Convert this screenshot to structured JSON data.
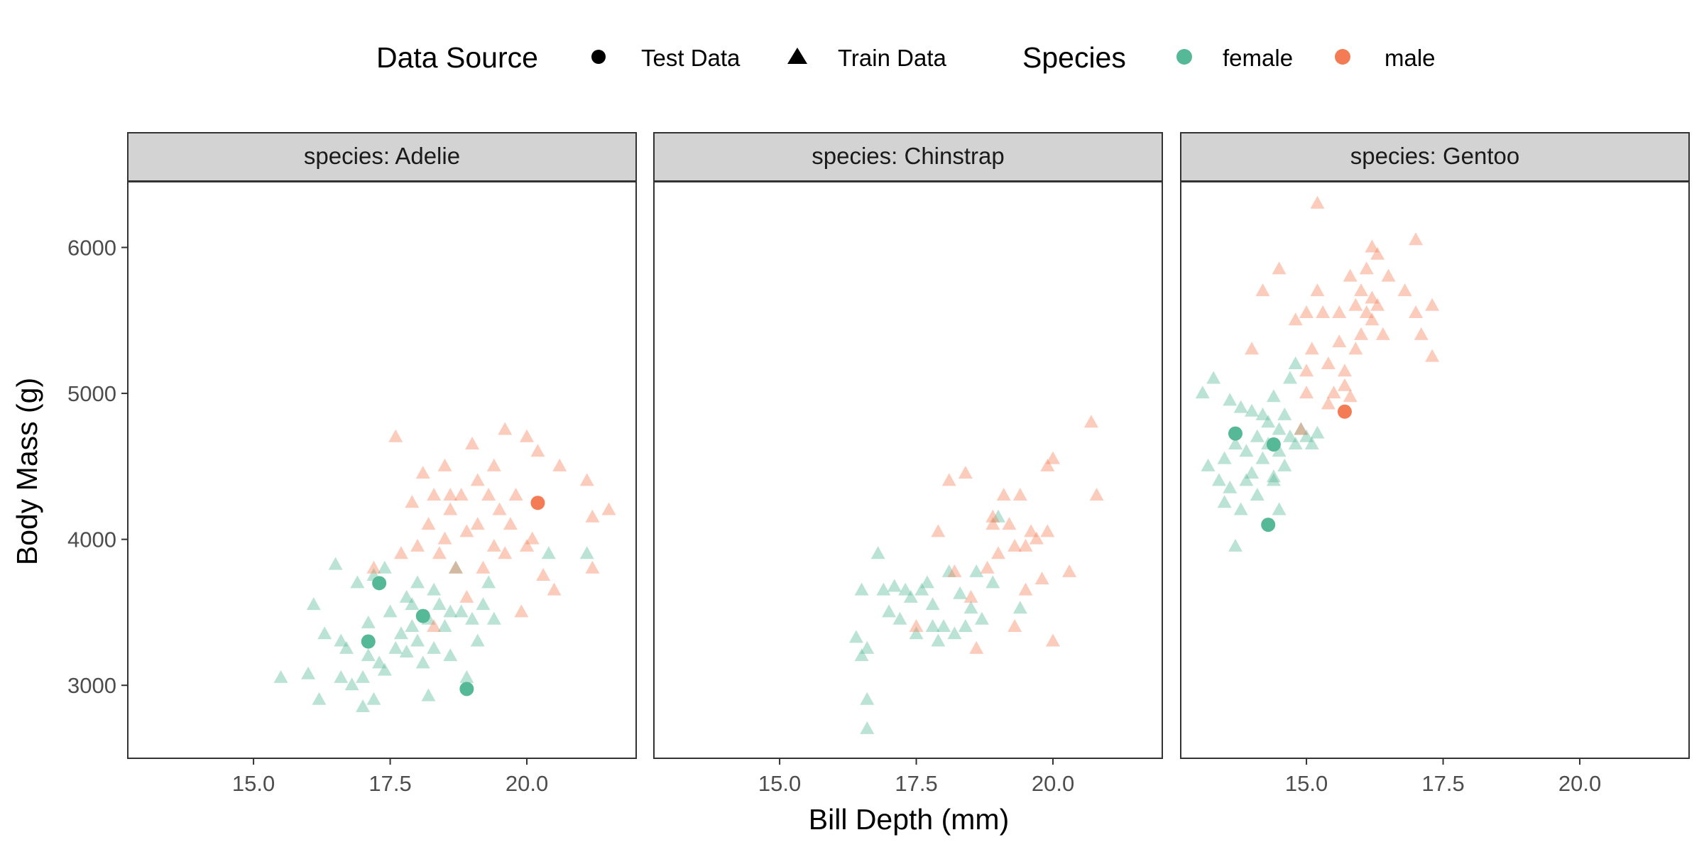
{
  "chart_data": {
    "type": "scatter",
    "facet_label_prefix": "species: ",
    "facets": [
      "Adelie",
      "Chinstrap",
      "Gentoo"
    ],
    "xlabel": "Bill Depth (mm)",
    "ylabel": "Body Mass (g)",
    "xlim": [
      12.7,
      22.0
    ],
    "ylim": [
      2500,
      6450
    ],
    "x_ticks": [
      15.0,
      17.5,
      20.0
    ],
    "x_tick_labels": [
      "15.0",
      "17.5",
      "20.0"
    ],
    "y_ticks": [
      3000,
      4000,
      5000,
      6000
    ],
    "y_tick_labels": [
      "3000",
      "4000",
      "5000",
      "6000"
    ],
    "grid": false,
    "legend": {
      "placement": "top",
      "shape_title": "Data Source",
      "shape_entries": [
        {
          "label": "Test Data",
          "shape": "circle"
        },
        {
          "label": "Train Data",
          "shape": "triangle"
        }
      ],
      "color_title": "Species",
      "color_entries": [
        {
          "label": "female",
          "color": "#55b896"
        },
        {
          "label": "male",
          "color": "#f47c55"
        }
      ]
    },
    "colors": {
      "female": "#55b896",
      "male": "#f47c55",
      "strip_fill": "#d3d3d3",
      "panel_border": "#333333"
    },
    "series": [
      {
        "facet": "Adelie",
        "sex": "female",
        "source": "Test Data",
        "points": [
          [
            17.3,
            3700
          ],
          [
            18.1,
            3475
          ],
          [
            17.1,
            3300
          ],
          [
            18.9,
            2975
          ]
        ]
      },
      {
        "facet": "Adelie",
        "sex": "male",
        "source": "Test Data",
        "points": [
          [
            20.2,
            4250
          ]
        ]
      },
      {
        "facet": "Adelie",
        "sex": "female",
        "source": "Train Data",
        "points": [
          [
            15.5,
            3050
          ],
          [
            16.0,
            3075
          ],
          [
            16.1,
            3550
          ],
          [
            16.2,
            2900
          ],
          [
            16.3,
            3350
          ],
          [
            16.5,
            3825
          ],
          [
            16.6,
            3050
          ],
          [
            16.7,
            3250
          ],
          [
            16.8,
            3000
          ],
          [
            16.9,
            3700
          ],
          [
            17.0,
            3050
          ],
          [
            17.1,
            3425
          ],
          [
            17.1,
            3200
          ],
          [
            17.2,
            2900
          ],
          [
            17.2,
            3750
          ],
          [
            17.3,
            3150
          ],
          [
            17.4,
            3800
          ],
          [
            17.5,
            3500
          ],
          [
            17.6,
            3250
          ],
          [
            17.7,
            3350
          ],
          [
            17.8,
            3225
          ],
          [
            17.8,
            3600
          ],
          [
            17.9,
            3400
          ],
          [
            18.0,
            3300
          ],
          [
            18.0,
            3700
          ],
          [
            18.1,
            3150
          ],
          [
            18.2,
            3450
          ],
          [
            18.2,
            2925
          ],
          [
            18.3,
            3650
          ],
          [
            18.4,
            3550
          ],
          [
            18.5,
            3400
          ],
          [
            18.6,
            3200
          ],
          [
            18.7,
            3800
          ],
          [
            18.8,
            3500
          ],
          [
            18.9,
            3050
          ],
          [
            19.0,
            3450
          ],
          [
            19.1,
            3300
          ],
          [
            19.2,
            3550
          ],
          [
            19.3,
            3700
          ],
          [
            16.6,
            3300
          ],
          [
            17.0,
            2850
          ],
          [
            17.4,
            3100
          ],
          [
            17.9,
            3550
          ],
          [
            18.3,
            3250
          ],
          [
            18.6,
            3500
          ],
          [
            19.4,
            3450
          ],
          [
            20.4,
            3900
          ],
          [
            21.1,
            3900
          ]
        ]
      },
      {
        "facet": "Adelie",
        "sex": "male",
        "source": "Train Data",
        "points": [
          [
            17.6,
            4700
          ],
          [
            17.7,
            3900
          ],
          [
            17.9,
            4250
          ],
          [
            18.0,
            3950
          ],
          [
            18.1,
            4450
          ],
          [
            18.2,
            4100
          ],
          [
            18.3,
            4300
          ],
          [
            18.4,
            3900
          ],
          [
            18.5,
            4000
          ],
          [
            18.5,
            4500
          ],
          [
            18.6,
            4200
          ],
          [
            18.7,
            3800
          ],
          [
            18.8,
            4300
          ],
          [
            18.9,
            3600
          ],
          [
            18.9,
            4050
          ],
          [
            19.0,
            4650
          ],
          [
            19.1,
            4400
          ],
          [
            19.1,
            4100
          ],
          [
            19.2,
            3800
          ],
          [
            19.3,
            4300
          ],
          [
            19.4,
            3950
          ],
          [
            19.4,
            4500
          ],
          [
            19.5,
            4200
          ],
          [
            19.6,
            4750
          ],
          [
            19.6,
            3900
          ],
          [
            19.7,
            4100
          ],
          [
            19.8,
            4300
          ],
          [
            19.9,
            3500
          ],
          [
            20.0,
            3950
          ],
          [
            20.0,
            4700
          ],
          [
            20.1,
            4000
          ],
          [
            20.2,
            4600
          ],
          [
            20.3,
            3750
          ],
          [
            20.5,
            3650
          ],
          [
            20.6,
            4500
          ],
          [
            21.1,
            4400
          ],
          [
            21.2,
            4150
          ],
          [
            21.5,
            4200
          ],
          [
            21.2,
            3800
          ],
          [
            18.6,
            4300
          ],
          [
            18.3,
            3400
          ],
          [
            17.2,
            3800
          ]
        ]
      },
      {
        "facet": "Chinstrap",
        "sex": "female",
        "source": "Train Data",
        "points": [
          [
            16.4,
            3325
          ],
          [
            16.5,
            3200
          ],
          [
            16.6,
            3250
          ],
          [
            16.6,
            2900
          ],
          [
            16.6,
            2700
          ],
          [
            16.8,
            3900
          ],
          [
            16.9,
            3650
          ],
          [
            17.0,
            3500
          ],
          [
            17.1,
            3675
          ],
          [
            17.2,
            3450
          ],
          [
            17.3,
            3650
          ],
          [
            17.4,
            3600
          ],
          [
            17.5,
            3350
          ],
          [
            17.6,
            3650
          ],
          [
            17.7,
            3700
          ],
          [
            17.8,
            3400
          ],
          [
            17.8,
            3550
          ],
          [
            17.9,
            3300
          ],
          [
            18.0,
            3400
          ],
          [
            18.1,
            3775
          ],
          [
            18.2,
            3350
          ],
          [
            18.3,
            3625
          ],
          [
            18.4,
            3400
          ],
          [
            18.5,
            3525
          ],
          [
            18.6,
            3775
          ],
          [
            18.7,
            3450
          ],
          [
            18.9,
            3700
          ],
          [
            19.0,
            4150
          ],
          [
            19.4,
            3525
          ],
          [
            16.5,
            3650
          ]
        ]
      },
      {
        "facet": "Chinstrap",
        "sex": "male",
        "source": "Train Data",
        "points": [
          [
            17.5,
            3400
          ],
          [
            17.9,
            4050
          ],
          [
            18.1,
            4400
          ],
          [
            18.2,
            3775
          ],
          [
            18.4,
            4450
          ],
          [
            18.5,
            3600
          ],
          [
            18.6,
            3250
          ],
          [
            18.8,
            3800
          ],
          [
            18.9,
            4100
          ],
          [
            19.0,
            3900
          ],
          [
            19.1,
            4300
          ],
          [
            19.2,
            4100
          ],
          [
            19.3,
            3400
          ],
          [
            19.4,
            4300
          ],
          [
            19.5,
            3950
          ],
          [
            19.5,
            3650
          ],
          [
            19.6,
            4050
          ],
          [
            19.7,
            4000
          ],
          [
            19.8,
            3725
          ],
          [
            19.9,
            4050
          ],
          [
            19.9,
            4500
          ],
          [
            20.0,
            4550
          ],
          [
            20.0,
            3300
          ],
          [
            20.3,
            3775
          ],
          [
            20.7,
            4800
          ],
          [
            20.8,
            4300
          ],
          [
            19.3,
            3950
          ],
          [
            18.9,
            4150
          ]
        ]
      },
      {
        "facet": "Gentoo",
        "sex": "female",
        "source": "Test Data",
        "points": [
          [
            13.7,
            4725
          ],
          [
            14.4,
            4650
          ],
          [
            14.3,
            4100
          ]
        ]
      },
      {
        "facet": "Gentoo",
        "sex": "male",
        "source": "Test Data",
        "points": [
          [
            15.7,
            4875
          ]
        ]
      },
      {
        "facet": "Gentoo",
        "sex": "female",
        "source": "Train Data",
        "points": [
          [
            13.1,
            5000
          ],
          [
            13.2,
            4500
          ],
          [
            13.3,
            5100
          ],
          [
            13.4,
            4400
          ],
          [
            13.5,
            4550
          ],
          [
            13.5,
            4250
          ],
          [
            13.6,
            4950
          ],
          [
            13.6,
            4350
          ],
          [
            13.7,
            3950
          ],
          [
            13.7,
            4650
          ],
          [
            13.8,
            4200
          ],
          [
            13.8,
            4900
          ],
          [
            13.9,
            4400
          ],
          [
            14.0,
            4875
          ],
          [
            14.0,
            4450
          ],
          [
            14.1,
            4700
          ],
          [
            14.1,
            4300
          ],
          [
            14.2,
            4850
          ],
          [
            14.2,
            4550
          ],
          [
            14.3,
            4650
          ],
          [
            14.3,
            4800
          ],
          [
            14.4,
            4400
          ],
          [
            14.4,
            4975
          ],
          [
            14.5,
            4600
          ],
          [
            14.5,
            4750
          ],
          [
            14.5,
            4200
          ],
          [
            14.6,
            4850
          ],
          [
            14.6,
            4500
          ],
          [
            14.7,
            5100
          ],
          [
            14.7,
            4700
          ],
          [
            14.8,
            5200
          ],
          [
            14.8,
            4650
          ],
          [
            14.9,
            4750
          ],
          [
            15.0,
            4700
          ],
          [
            15.1,
            4650
          ],
          [
            15.2,
            4725
          ],
          [
            13.9,
            4600
          ],
          [
            14.4,
            4425
          ]
        ]
      },
      {
        "facet": "Gentoo",
        "sex": "male",
        "source": "Train Data",
        "points": [
          [
            14.2,
            5700
          ],
          [
            14.5,
            5850
          ],
          [
            14.8,
            5500
          ],
          [
            15.0,
            5550
          ],
          [
            15.0,
            5000
          ],
          [
            15.1,
            5300
          ],
          [
            15.2,
            6300
          ],
          [
            15.2,
            5700
          ],
          [
            15.3,
            5550
          ],
          [
            15.4,
            5200
          ],
          [
            15.4,
            4925
          ],
          [
            15.5,
            5000
          ],
          [
            15.6,
            5350
          ],
          [
            15.7,
            5150
          ],
          [
            15.7,
            5050
          ],
          [
            15.8,
            5800
          ],
          [
            15.8,
            4975
          ],
          [
            15.9,
            5600
          ],
          [
            15.9,
            5300
          ],
          [
            16.0,
            5700
          ],
          [
            16.0,
            5400
          ],
          [
            16.1,
            5550
          ],
          [
            16.1,
            5850
          ],
          [
            16.2,
            6000
          ],
          [
            16.2,
            5500
          ],
          [
            16.3,
            5950
          ],
          [
            16.3,
            5600
          ],
          [
            16.4,
            5400
          ],
          [
            16.5,
            5800
          ],
          [
            16.8,
            5700
          ],
          [
            17.0,
            6050
          ],
          [
            17.0,
            5550
          ],
          [
            17.1,
            5400
          ],
          [
            17.3,
            5600
          ],
          [
            17.3,
            5250
          ],
          [
            14.0,
            5300
          ],
          [
            14.9,
            4750
          ],
          [
            15.6,
            5550
          ],
          [
            16.2,
            5650
          ],
          [
            15.0,
            5150
          ]
        ]
      }
    ]
  }
}
